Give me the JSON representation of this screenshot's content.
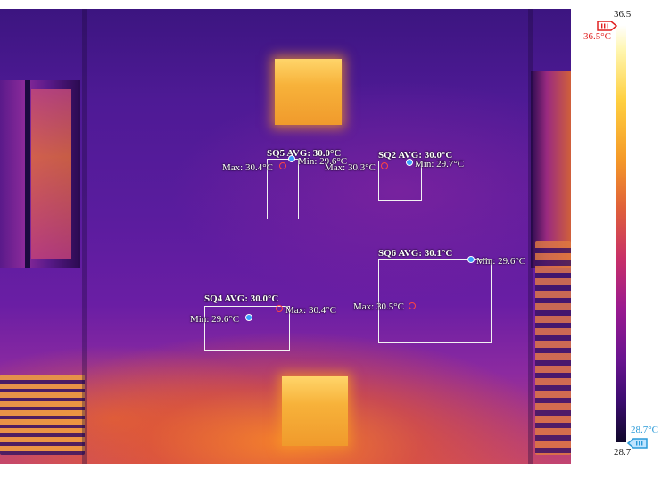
{
  "scale": {
    "max_value": "36.5",
    "min_value": "28.7",
    "max_marker": "36.5°C",
    "min_marker": "28.7°C",
    "max_color": "#e02020",
    "min_color": "#2a9ad8"
  },
  "regions": {
    "sq5": {
      "title": "SQ5 AVG: 30.0°C",
      "max": "Max: 30.4°C",
      "min": "Min: 29.6°C"
    },
    "sq2": {
      "title": "SQ2 AVG: 30.0°C",
      "max": "Max: 30.3°C",
      "min": "Min: 29.7°C"
    },
    "sq6": {
      "title": "SQ6 AVG: 30.1°C",
      "max": "Max: 30.5°C",
      "min": "Min: 29.6°C"
    },
    "sq4": {
      "title": "SQ4 AVG: 30.0°C",
      "max": "Max: 30.4°C",
      "min": "Min: 29.6°C"
    }
  },
  "icons": {
    "max_marker_icon": "thermometer-high-icon",
    "min_marker_icon": "thermometer-low-icon"
  }
}
